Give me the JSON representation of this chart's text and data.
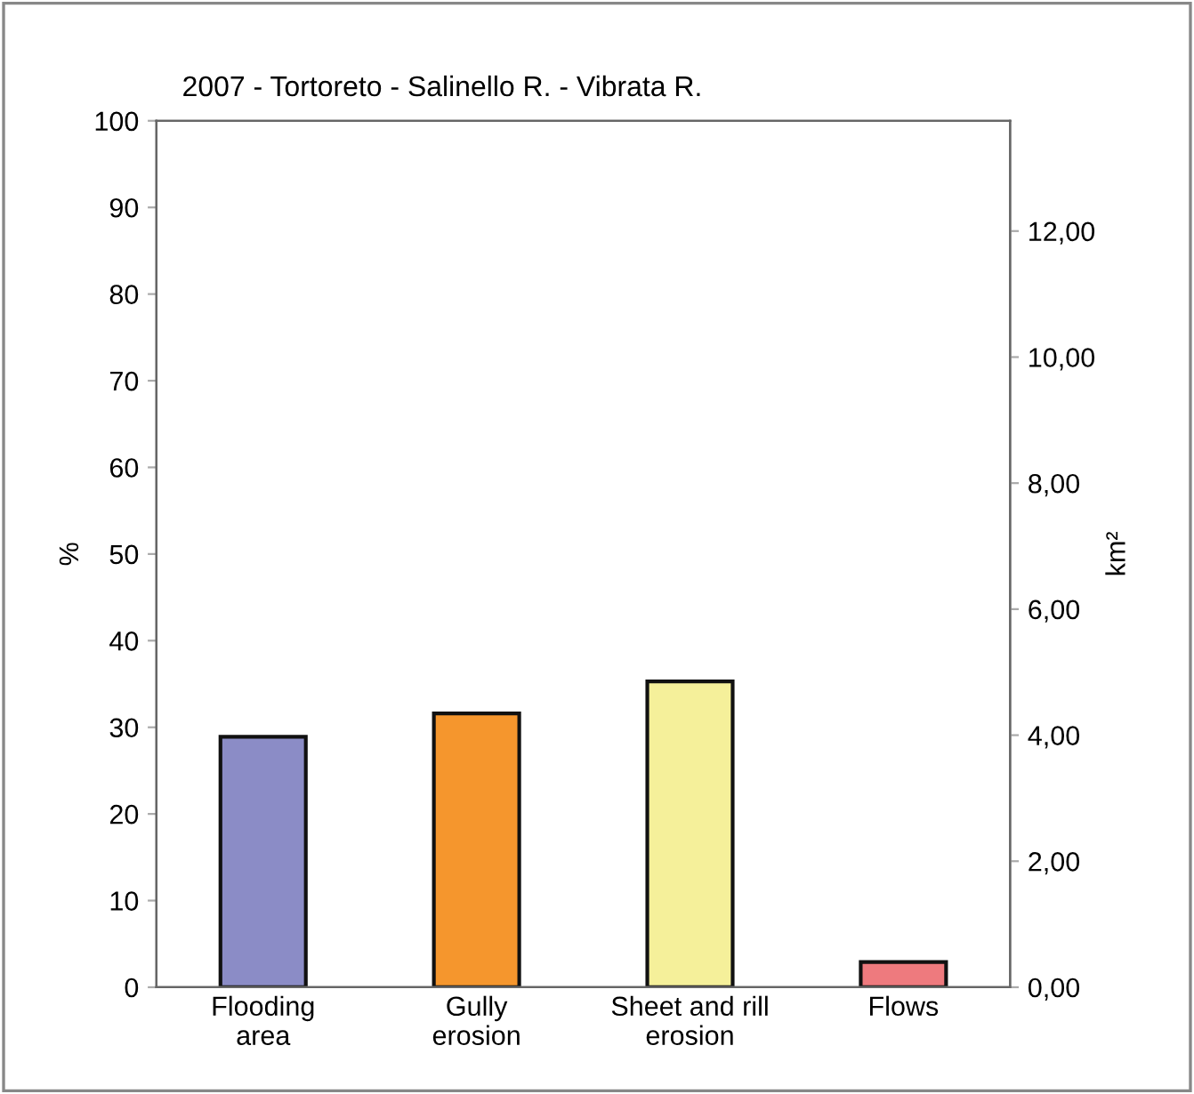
{
  "chart_data": {
    "type": "bar",
    "title": "2007 - Tortoreto - Salinello R. - Vibrata R.",
    "categories": [
      "Flooding\narea",
      "Gully\nerosion",
      "Sheet and rill\nerosion",
      "Flows"
    ],
    "values": [
      28.9,
      31.6,
      35.3,
      2.9
    ],
    "colors": [
      "#8b8cc6",
      "#f5962d",
      "#f5f09a",
      "#ee7a7e"
    ],
    "ylabel": "%",
    "y2label": "km²",
    "ylim": [
      0,
      100
    ],
    "yticks": [
      0,
      10,
      20,
      30,
      40,
      50,
      60,
      70,
      80,
      90,
      100
    ],
    "y2lim": [
      0,
      13.75
    ],
    "y2ticks": [
      {
        "value": 0,
        "label": "0,00"
      },
      {
        "value": 2,
        "label": "2,00"
      },
      {
        "value": 4,
        "label": "4,00"
      },
      {
        "value": 6,
        "label": "6,00"
      },
      {
        "value": 8,
        "label": "8,00"
      },
      {
        "value": 10,
        "label": "10,00"
      },
      {
        "value": 12,
        "label": "12,00"
      }
    ],
    "grid": false,
    "legend": false
  }
}
